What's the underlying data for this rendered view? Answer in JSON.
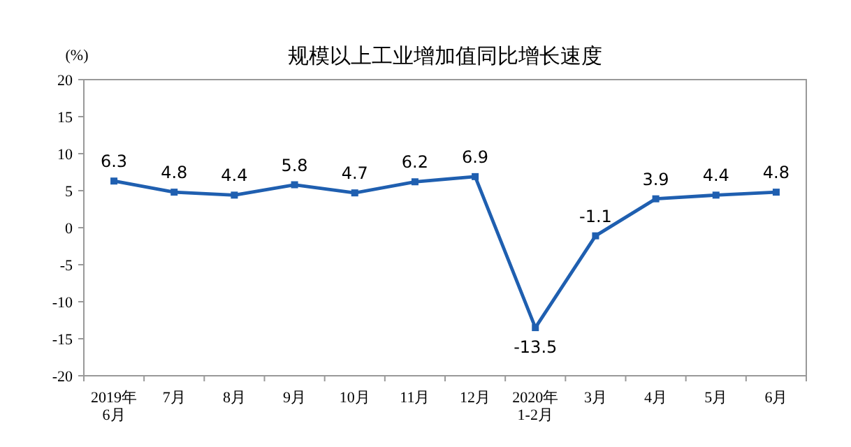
{
  "chart_data": {
    "type": "line",
    "title": "规模以上工业增加值同比增长速度",
    "ylabel": "(%)",
    "categories": [
      "2019年\n6月",
      "7月",
      "8月",
      "9月",
      "10月",
      "11月",
      "12月",
      "2020年\n1-2月",
      "3月",
      "4月",
      "5月",
      "6月"
    ],
    "series": [
      {
        "color": "#1f5fb0",
        "values": [
          6.3,
          4.8,
          4.4,
          5.8,
          4.7,
          6.2,
          6.9,
          -13.5,
          -1.1,
          3.9,
          4.4,
          4.8
        ]
      }
    ],
    "ylim": [
      -20,
      20
    ],
    "yticks": [
      -20,
      -15,
      -10,
      -5,
      0,
      5,
      10,
      15,
      20
    ],
    "marker": "square",
    "data_labels": true
  }
}
